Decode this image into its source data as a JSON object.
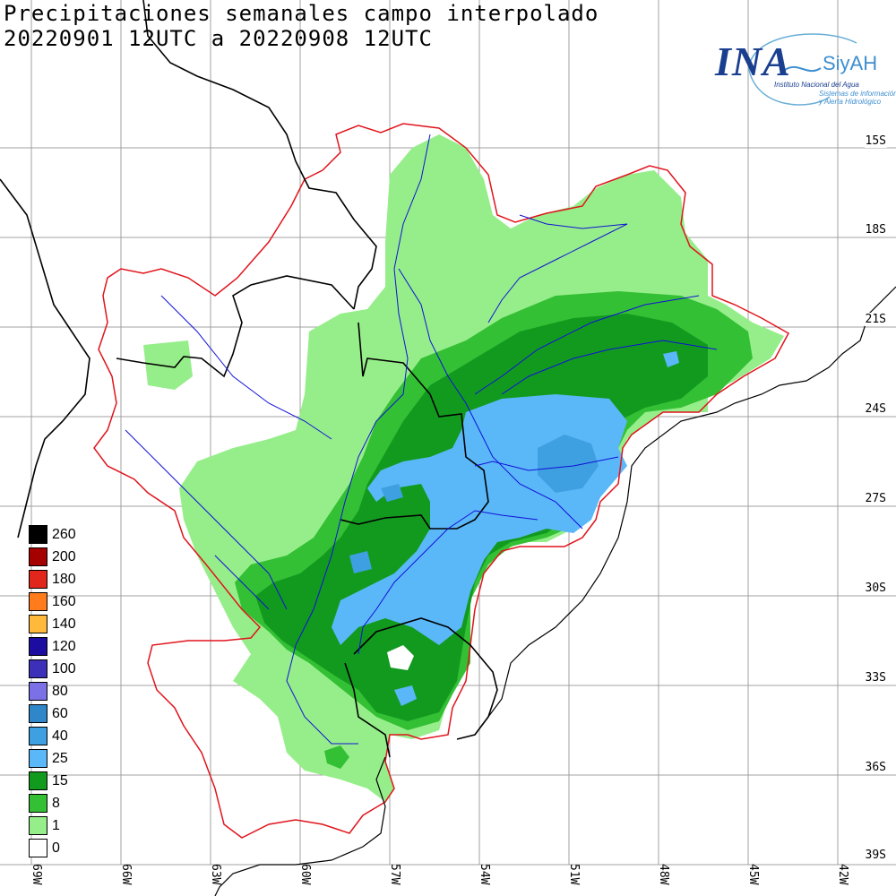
{
  "title": {
    "line1": "Precipitaciones semanales campo interpolado",
    "line2": "20220901 12UTC a 20220908 12UTC"
  },
  "logo": {
    "name": "INA",
    "product": "SiyAH",
    "institution": "Instituto Nacional del Agua",
    "tagline1": "Sistemas de información",
    "tagline2": "y Alerta Hidrológico"
  },
  "latitude_labels": [
    "15S",
    "18S",
    "21S",
    "24S",
    "27S",
    "30S",
    "33S",
    "36S",
    "39S"
  ],
  "longitude_labels": [
    "69W",
    "66W",
    "63W",
    "60W",
    "57W",
    "54W",
    "51W",
    "48W",
    "45W",
    "42W"
  ],
  "legend": [
    {
      "label": "260",
      "color": "#000000"
    },
    {
      "label": "200",
      "color": "#a50000"
    },
    {
      "label": "180",
      "color": "#e1261c"
    },
    {
      "label": "160",
      "color": "#ff7b1c"
    },
    {
      "label": "140",
      "color": "#ffba3c"
    },
    {
      "label": "120",
      "color": "#1c0da0"
    },
    {
      "label": "100",
      "color": "#3c2fb8"
    },
    {
      "label": "80",
      "color": "#7b70e6"
    },
    {
      "label": "60",
      "color": "#2f86c8"
    },
    {
      "label": "40",
      "color": "#3ea0e0"
    },
    {
      "label": "25",
      "color": "#5bb8f8"
    },
    {
      "label": "15",
      "color": "#129a1f"
    },
    {
      "label": "8",
      "color": "#34c034"
    },
    {
      "label": "1",
      "color": "#96ee8a"
    },
    {
      "label": "0",
      "color": "#ffffff"
    }
  ],
  "map_colors": {
    "basin_outline": "#e0141c",
    "rivers": "#1010d8",
    "borders": "#000000",
    "grid": "#a0a0a0"
  }
}
